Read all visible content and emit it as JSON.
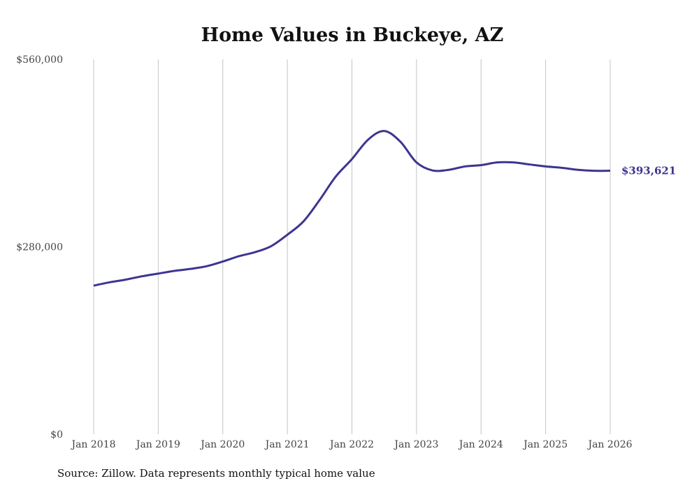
{
  "chart_data": {
    "type": "line",
    "title": "Home Values in Buckeye, AZ",
    "xlabel": "",
    "ylabel": "",
    "ylim": [
      0,
      560000
    ],
    "xlim": [
      "2018-01",
      "2026-01"
    ],
    "y_ticks": [
      0,
      280000,
      560000
    ],
    "y_tick_labels": [
      "$0",
      "$280,000",
      "$560,000"
    ],
    "x_ticks": [
      "2018-01",
      "2019-01",
      "2020-01",
      "2021-01",
      "2022-01",
      "2023-01",
      "2024-01",
      "2025-01",
      "2026-01"
    ],
    "x_tick_labels": [
      "Jan 2018",
      "Jan 2019",
      "Jan 2020",
      "Jan 2021",
      "Jan 2022",
      "Jan 2023",
      "Jan 2024",
      "Jan 2025",
      "Jan 2026"
    ],
    "grid": "vertical",
    "line_color": "#3d3590",
    "end_label": "$393,621",
    "source": "Source: Zillow. Data represents monthly typical home value",
    "series": [
      {
        "name": "Typical home value",
        "x": [
          "2018-01",
          "2018-04",
          "2018-07",
          "2018-10",
          "2019-01",
          "2019-04",
          "2019-07",
          "2019-10",
          "2020-01",
          "2020-04",
          "2020-07",
          "2020-10",
          "2021-01",
          "2021-04",
          "2021-07",
          "2021-10",
          "2022-01",
          "2022-04",
          "2022-07",
          "2022-10",
          "2023-01",
          "2023-04",
          "2023-07",
          "2023-10",
          "2024-01",
          "2024-04",
          "2024-07",
          "2024-10",
          "2025-01",
          "2025-04",
          "2025-07",
          "2025-10",
          "2026-01"
        ],
        "values": [
          222000,
          227000,
          231000,
          236000,
          240000,
          244000,
          247000,
          251000,
          258000,
          266000,
          272000,
          281000,
          298000,
          318000,
          350000,
          385000,
          411000,
          440000,
          453000,
          437000,
          406000,
          394000,
          395000,
          400000,
          402000,
          406000,
          406000,
          403000,
          400000,
          398000,
          395000,
          393500,
          393621
        ]
      }
    ]
  }
}
